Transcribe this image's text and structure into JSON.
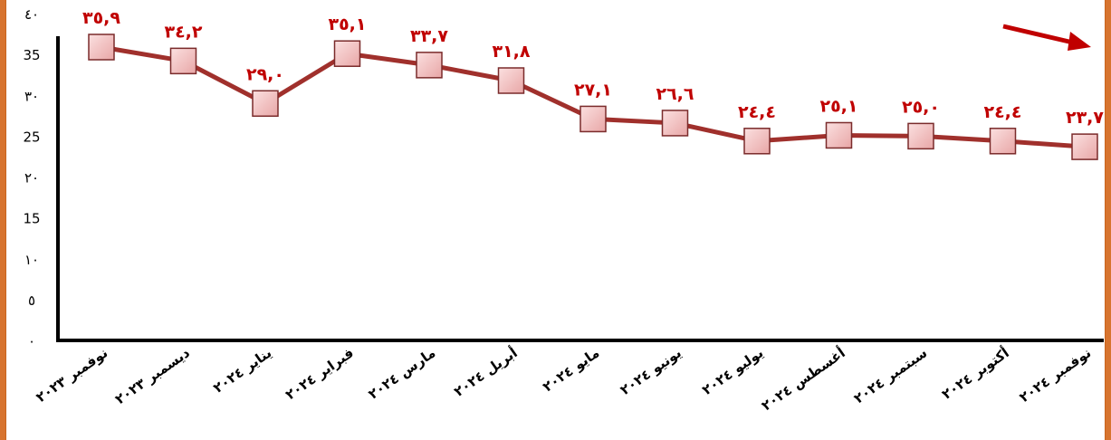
{
  "chart_data": {
    "type": "line",
    "title": "",
    "xlabel": "",
    "ylabel": "",
    "ylim": [
      0,
      40
    ],
    "yticks": [
      0,
      5,
      10,
      15,
      20,
      25,
      30,
      35,
      40
    ],
    "ytick_labels": [
      "٠",
      "٥",
      "١٠",
      "15",
      "٢٠",
      "25",
      "٣٠",
      "35",
      "٤٠"
    ],
    "grid": false,
    "legend": "none",
    "categories": [
      "نوفمبر ٢٠٢٣",
      "ديسمبر ٢٠٢٣",
      "يناير ٢٠٢٤",
      "فبراير ٢٠٢٤",
      "مارس ٢٠٢٤",
      "أبريل ٢٠٢٤",
      "مايو ٢٠٢٤",
      "يونيو ٢٠٢٤",
      "يوليو ٢٠٢٤",
      "أغسطس ٢٠٢٤",
      "سبتمبر ٢٠٢٤",
      "أكتوبر ٢٠٢٤",
      "نوفمبر ٢٠٢٤"
    ],
    "series": [
      {
        "values": [
          35.9,
          34.2,
          29.0,
          35.1,
          33.7,
          31.8,
          27.1,
          26.6,
          24.4,
          25.1,
          25.0,
          24.4,
          23.7
        ],
        "labels": [
          "٣٥,٩",
          "٣٤,٢",
          "٢٩,٠",
          "٣٥,١",
          "٣٣,٧",
          "٣١,٨",
          "٢٧,١",
          "٢٦,٦",
          "٢٤,٤",
          "٢٥,١",
          "٢٥,٠",
          "٢٤,٤",
          "٢٣,٧"
        ],
        "color": "#a0302c",
        "marker_color": "#f0b8b8"
      }
    ],
    "trend_arrow_color": "#c00000"
  }
}
